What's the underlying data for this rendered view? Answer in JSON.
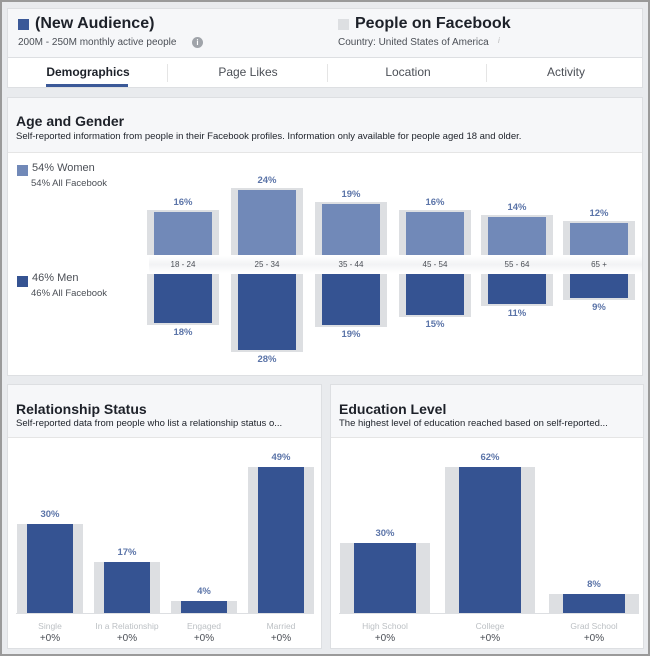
{
  "header": {
    "audience": {
      "title": "(New Audience)",
      "subtitle": "200M - 250M monthly active people",
      "color": "#3b5998"
    },
    "baseline": {
      "title": "People on Facebook",
      "subtitle": "Country: United States of America",
      "color": "#dddfe2"
    }
  },
  "tabs": [
    {
      "label": "Demographics",
      "active": true
    },
    {
      "label": "Page Likes",
      "active": false
    },
    {
      "label": "Location",
      "active": false
    },
    {
      "label": "Activity",
      "active": false
    }
  ],
  "age_gender": {
    "title": "Age and Gender",
    "subtitle": "Self-reported information from people in their Facebook profiles. Information only available for people aged 18 and older.",
    "women": {
      "label": "54% Women",
      "baseline": "54% All Facebook",
      "color": "#7189b8"
    },
    "men": {
      "label": "46% Men",
      "baseline": "46% All Facebook",
      "color": "#355392"
    }
  },
  "relationship": {
    "title": "Relationship Status",
    "subtitle": "Self-reported data from people who list a relationship status o..."
  },
  "education": {
    "title": "Education Level",
    "subtitle": "The highest level of education reached based on self-reported..."
  },
  "chart_data": [
    {
      "type": "bar",
      "categories": [
        "18 - 24",
        "25 - 34",
        "35 - 44",
        "45 - 54",
        "55 - 64",
        "65 +"
      ],
      "series": [
        {
          "name": "Women",
          "values": [
            16,
            24,
            19,
            16,
            14,
            12
          ],
          "labels": [
            "16%",
            "24%",
            "19%",
            "16%",
            "14%",
            "12%"
          ]
        },
        {
          "name": "Men",
          "values": [
            18,
            28,
            19,
            15,
            11,
            9
          ],
          "labels": [
            "18%",
            "28%",
            "19%",
            "15%",
            "11%",
            "9%"
          ]
        }
      ]
    },
    {
      "type": "bar",
      "categories": [
        "Single",
        "In a Relationship",
        "Engaged",
        "Married"
      ],
      "values": [
        30,
        17,
        4,
        49
      ],
      "labels": [
        "30%",
        "17%",
        "4%",
        "49%"
      ],
      "changes": [
        "+0%",
        "+0%",
        "+0%",
        "+0%"
      ]
    },
    {
      "type": "bar",
      "categories": [
        "High School",
        "College",
        "Grad School"
      ],
      "values": [
        30,
        62,
        8
      ],
      "labels": [
        "30%",
        "62%",
        "8%"
      ],
      "changes": [
        "+0%",
        "+0%",
        "+0%"
      ]
    }
  ]
}
